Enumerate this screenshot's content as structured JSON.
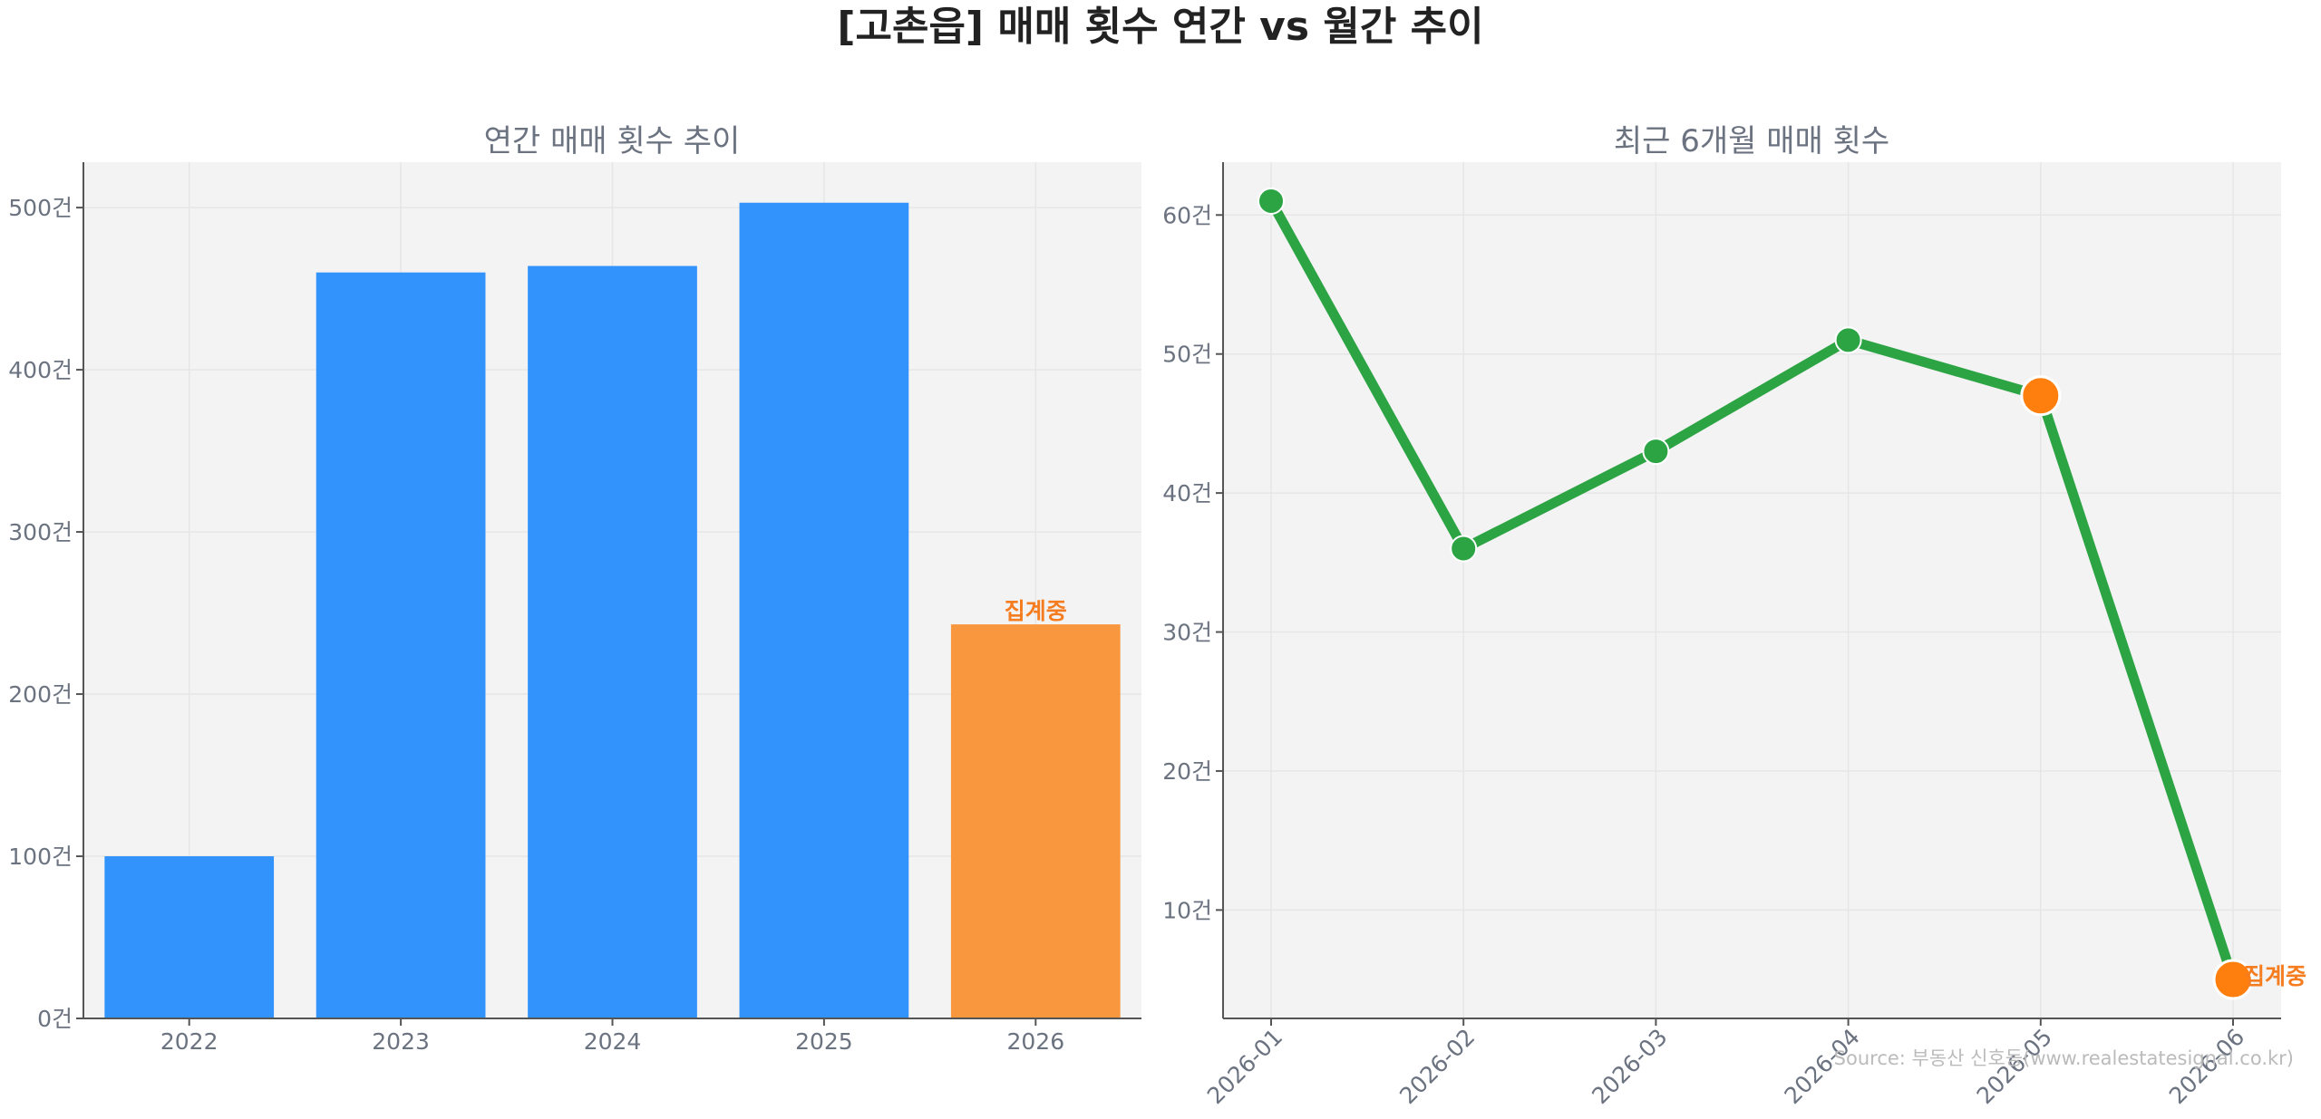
{
  "title": "[고촌읍] 매매 횟수 연간 vs 월간 추이",
  "source": "Source: 부동산 신호등(www.realestatesignal.co.kr)",
  "colors": {
    "bar": "#3193fb",
    "bar_highlight": "#f9973f",
    "line": "#2ca444",
    "marker_highlight": "#ff7f0e",
    "annotation": "#f57c1f",
    "plot_bg": "#f3f3f3"
  },
  "chart_data": [
    {
      "type": "bar",
      "title": "연간 매매 횟수 추이",
      "categories": [
        "2022",
        "2023",
        "2024",
        "2025",
        "2026"
      ],
      "values": [
        100,
        460,
        464,
        503,
        243
      ],
      "highlight_index": 4,
      "annotation": "집계중",
      "ylim": [
        0,
        528
      ],
      "yticks": [
        0,
        100,
        200,
        300,
        400,
        500
      ],
      "ytick_labels": [
        "0건",
        "100건",
        "200건",
        "300건",
        "400건",
        "500건"
      ],
      "grid": true
    },
    {
      "type": "line",
      "title": "최근 6개월 매매 횟수",
      "x": [
        "2026-01",
        "2026-02",
        "2026-03",
        "2026-04",
        "2026-05",
        "2026-06"
      ],
      "values": [
        61,
        36,
        43,
        51,
        47,
        5
      ],
      "highlight_indices": [
        4,
        5
      ],
      "annotation": "집계중",
      "ylim": [
        2.2,
        63.8
      ],
      "yticks": [
        10,
        20,
        30,
        40,
        50,
        60
      ],
      "ytick_labels": [
        "10건",
        "20건",
        "30건",
        "40건",
        "50건",
        "60건"
      ],
      "grid": true
    }
  ]
}
